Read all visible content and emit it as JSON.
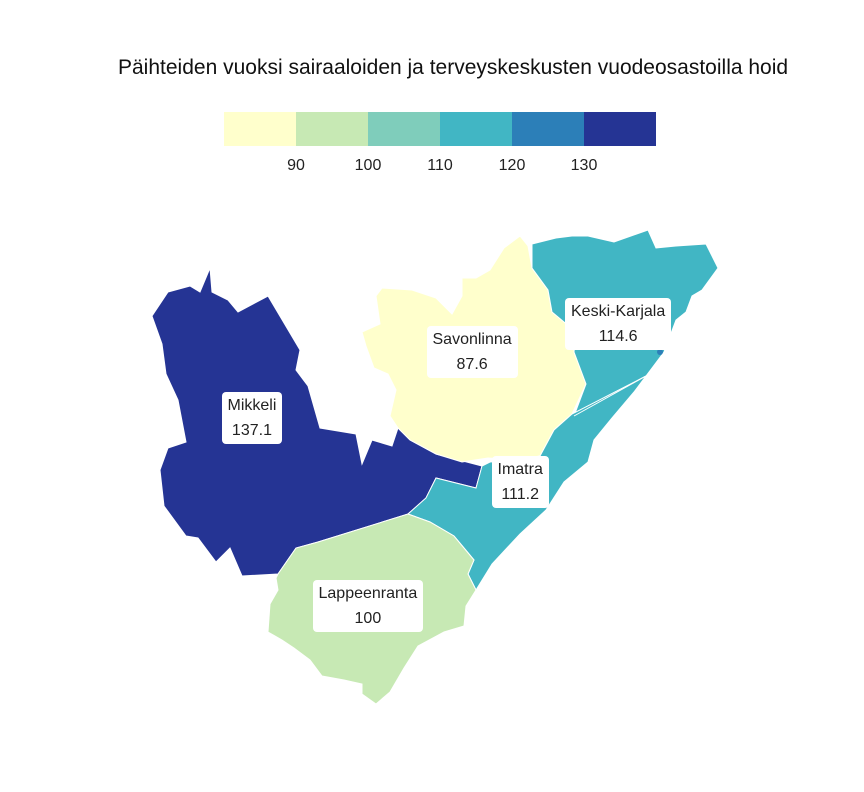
{
  "title": "Päihteiden vuoksi sairaaloiden ja terveyskeskusten vuodeosastoilla hoid",
  "legend": {
    "colors": [
      "#ffffcc",
      "#c7e9b4",
      "#7fcdbb",
      "#41b6c4",
      "#2c7fb8",
      "#253494"
    ],
    "ticks": [
      "90",
      "100",
      "110",
      "120",
      "130"
    ]
  },
  "regions": [
    {
      "name": "Mikkeli",
      "value": "137.1",
      "color": "#253494"
    },
    {
      "name": "Savonlinna",
      "value": "87.6",
      "color": "#ffffcc"
    },
    {
      "name": "Keski-Karjala",
      "value": "114.6",
      "color": "#41b6c4"
    },
    {
      "name": "Imatra",
      "value": "111.2",
      "color": "#41b6c4"
    },
    {
      "name": "Lappeenranta",
      "value": "100",
      "color": "#c7e9b4"
    }
  ]
}
